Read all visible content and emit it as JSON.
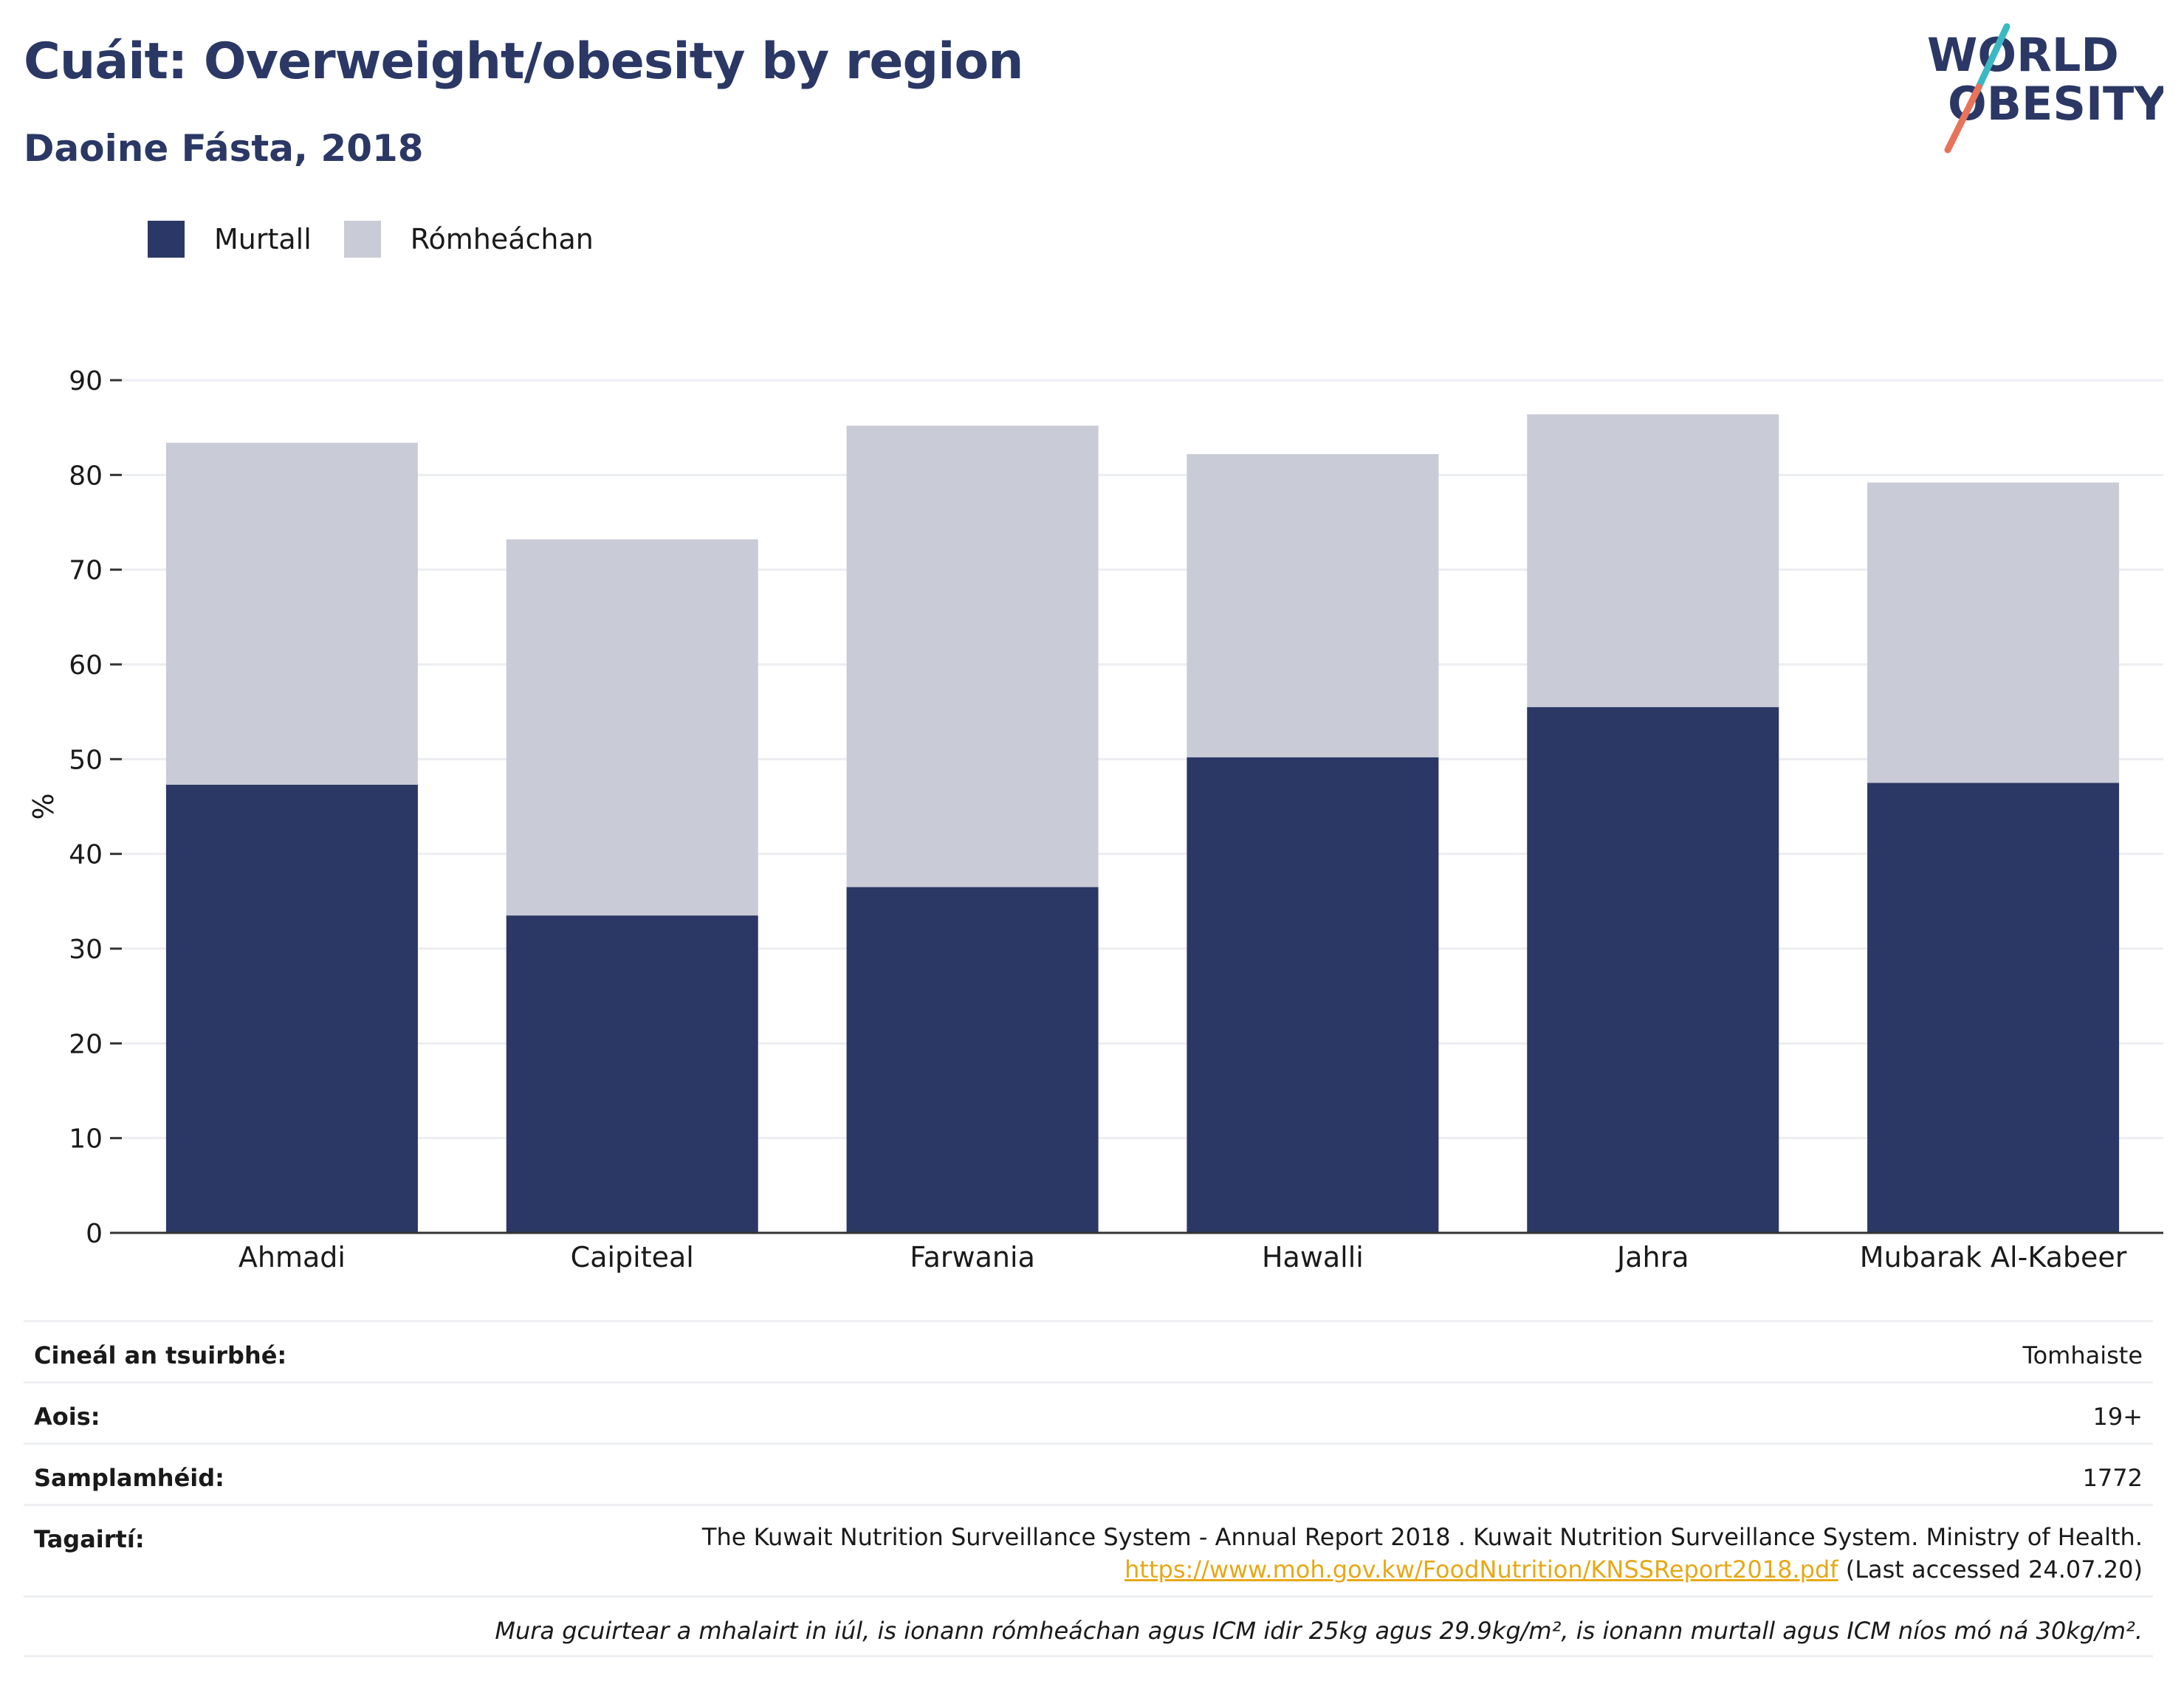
{
  "header": {
    "title": "Cuáit: Overweight/obesity by region",
    "subtitle": "Daoine Fásta, 2018"
  },
  "logo": {
    "line1": "WORLD",
    "line2": "OBESITY",
    "slash_colors": [
      "#3bb8c3",
      "#e8735a"
    ],
    "text_color": "#2b3865"
  },
  "legend": [
    {
      "label": "Murtall",
      "color": "#2b3865"
    },
    {
      "label": "Rómheáchan",
      "color": "#c9cbd6"
    }
  ],
  "chart_data": {
    "type": "bar",
    "stacked": true,
    "categories": [
      "Ahmadi",
      "Caipiteal",
      "Farwania",
      "Hawalli",
      "Jahra",
      "Mubarak Al-Kabeer"
    ],
    "series": [
      {
        "name": "Murtall",
        "color": "#2b3865",
        "values": [
          47.3,
          33.5,
          36.5,
          50.2,
          55.5,
          47.5
        ]
      },
      {
        "name": "Rómheáchan",
        "color": "#c9cbd6",
        "values": [
          36.1,
          39.7,
          48.7,
          32.0,
          30.9,
          31.7
        ]
      }
    ],
    "ylabel": "%",
    "ylim": [
      0,
      90
    ],
    "yticks": [
      0,
      10,
      20,
      30,
      40,
      50,
      60,
      70,
      80,
      90
    ],
    "grid": true
  },
  "info": {
    "survey_type_label": "Cineál an tsuirbhé:",
    "survey_type_value": "Tomhaiste",
    "age_label": "Aois:",
    "age_value": "19+",
    "sample_label": "Samplamhéid:",
    "sample_value": "1772",
    "refs_label": "Tagairtí:",
    "refs_text": "The Kuwait Nutrition Surveillance System - Annual Report 2018 . Kuwait Nutrition Surveillance System. Ministry of Health.",
    "refs_link": "https://www.moh.gov.kw/FoodNutrition/KNSSReport2018.pdf",
    "refs_accessed": " (Last accessed 24.07.20)",
    "note": "Mura gcuirtear a mhalairt in iúl, is ionann rómheáchan agus ICM idir 25kg agus 29.9kg/m², is ionann murtall agus ICM níos mó ná 30kg/m²."
  }
}
